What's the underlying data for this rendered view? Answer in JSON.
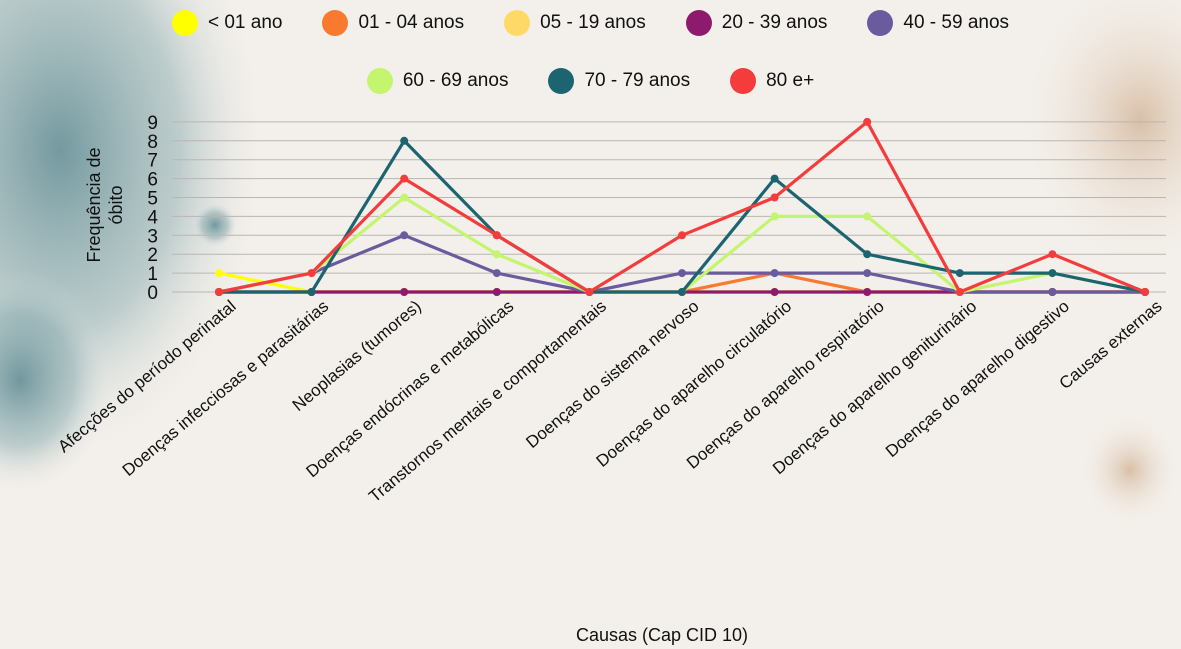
{
  "chart_data": {
    "type": "line",
    "ylabel": "Frequência de óbito",
    "xlabel": "Causas (Cap CID 10)",
    "ylim": [
      0,
      9
    ],
    "y_ticks": [
      "0",
      "1",
      "2",
      "3",
      "4",
      "5",
      "6",
      "7",
      "8",
      "9"
    ],
    "grid": true,
    "legend_position": "top",
    "categories": [
      "Afecções do período perinatal",
      "Doenças infecciosas e parasitárias",
      "Neoplasias (tumores)",
      "Doenças endócrinas e metabólicas",
      "Transtornos mentais e comportamentais",
      "Doenças do sistema nervoso",
      "Doenças do aparelho circulatório",
      "Doenças do aparelho respiratório",
      "Doenças do aparelho geniturinário",
      "Doenças do aparelho digestivo",
      "Causas externas"
    ],
    "series": [
      {
        "name": "< 01 ano",
        "color": "#ffff00",
        "values": [
          1,
          0,
          0,
          0,
          0,
          0,
          0,
          0,
          0,
          0,
          0
        ]
      },
      {
        "name": "01 - 04 anos",
        "color": "#f97a2e",
        "values": [
          0,
          0,
          0,
          0,
          0,
          0,
          1,
          0,
          0,
          0,
          0
        ]
      },
      {
        "name": "05 - 19 anos",
        "color": "#ffd966",
        "values": [
          0,
          0,
          0,
          0,
          0,
          0,
          0,
          0,
          0,
          0,
          0
        ]
      },
      {
        "name": "20 - 39 anos",
        "color": "#8e1a6e",
        "values": [
          0,
          0,
          0,
          0,
          0,
          0,
          0,
          0,
          0,
          0,
          0
        ]
      },
      {
        "name": "40 - 59 anos",
        "color": "#6a5a9e",
        "values": [
          0,
          1,
          3,
          1,
          0,
          1,
          1,
          1,
          0,
          0,
          0
        ]
      },
      {
        "name": "60 - 69 anos",
        "color": "#c4f56e",
        "values": [
          0,
          1,
          5,
          2,
          0,
          0,
          4,
          4,
          0,
          1,
          0
        ]
      },
      {
        "name": "70 - 79 anos",
        "color": "#1b6470",
        "values": [
          0,
          0,
          8,
          3,
          0,
          0,
          6,
          2,
          1,
          1,
          0
        ]
      },
      {
        "name": "80 e+",
        "color": "#f43c3c",
        "values": [
          0,
          1,
          6,
          3,
          0,
          3,
          5,
          9,
          0,
          2,
          0
        ]
      }
    ]
  }
}
